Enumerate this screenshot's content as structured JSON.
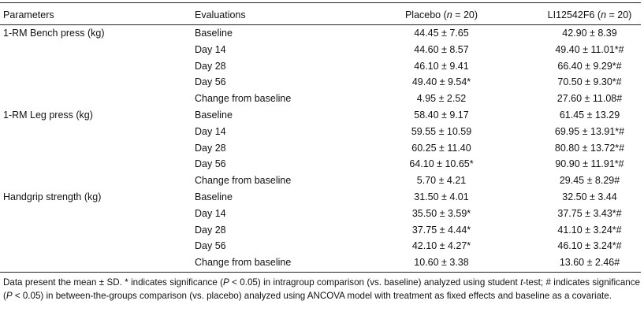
{
  "headers": {
    "parameters": "Parameters",
    "evaluations": "Evaluations",
    "placebo": "Placebo (n = 20)",
    "treatment": "LI12542F6 (n = 20)"
  },
  "rows": [
    {
      "parameter": "1-RM Bench press (kg)",
      "evaluation": "Baseline",
      "placebo": "44.45 ± 7.65",
      "treatment": "42.90 ± 8.39"
    },
    {
      "parameter": "",
      "evaluation": "Day 14",
      "placebo": "44.60 ± 8.57",
      "treatment": "49.40 ± 11.01*#"
    },
    {
      "parameter": "",
      "evaluation": "Day 28",
      "placebo": "46.10 ± 9.41",
      "treatment": "66.40 ± 9.29*#"
    },
    {
      "parameter": "",
      "evaluation": "Day 56",
      "placebo": "49.40 ± 9.54*",
      "treatment": "70.50 ± 9.30*#"
    },
    {
      "parameter": "",
      "evaluation": "Change from baseline",
      "placebo": "4.95 ± 2.52",
      "treatment": "27.60 ± 11.08#"
    },
    {
      "parameter": "1-RM Leg press (kg)",
      "evaluation": "Baseline",
      "placebo": "58.40 ± 9.17",
      "treatment": "61.45 ± 13.29"
    },
    {
      "parameter": "",
      "evaluation": "Day 14",
      "placebo": "59.55 ± 10.59",
      "treatment": "69.95 ± 13.91*#"
    },
    {
      "parameter": "",
      "evaluation": "Day 28",
      "placebo": "60.25 ± 11.40",
      "treatment": "80.80 ± 13.72*#"
    },
    {
      "parameter": "",
      "evaluation": "Day 56",
      "placebo": "64.10 ± 10.65*",
      "treatment": "90.90 ± 11.91*#"
    },
    {
      "parameter": "",
      "evaluation": "Change from baseline",
      "placebo": "5.70 ± 4.21",
      "treatment": "29.45 ± 8.29#"
    },
    {
      "parameter": "Handgrip strength (kg)",
      "evaluation": "Baseline",
      "placebo": "31.50 ± 4.01",
      "treatment": "32.50 ± 3.44"
    },
    {
      "parameter": "",
      "evaluation": "Day 14",
      "placebo": "35.50 ± 3.59*",
      "treatment": "37.75 ± 3.43*#"
    },
    {
      "parameter": "",
      "evaluation": "Day 28",
      "placebo": "37.75 ± 4.44*",
      "treatment": "41.10 ± 3.24*#"
    },
    {
      "parameter": "",
      "evaluation": "Day 56",
      "placebo": "42.10 ± 4.27*",
      "treatment": "46.10 ± 3.24*#"
    },
    {
      "parameter": "",
      "evaluation": "Change from baseline",
      "placebo": "10.60 ± 3.38",
      "treatment": "13.60 ± 2.46#"
    }
  ],
  "footnote": "Data present the mean ± SD. * indicates significance (P < 0.05) in intragroup comparison (vs. baseline) analyzed using student t-test; # indicates significance (P < 0.05) in between-the-groups comparison (vs. placebo) analyzed using ANCOVA model with treatment as fixed effects and baseline as a covariate."
}
